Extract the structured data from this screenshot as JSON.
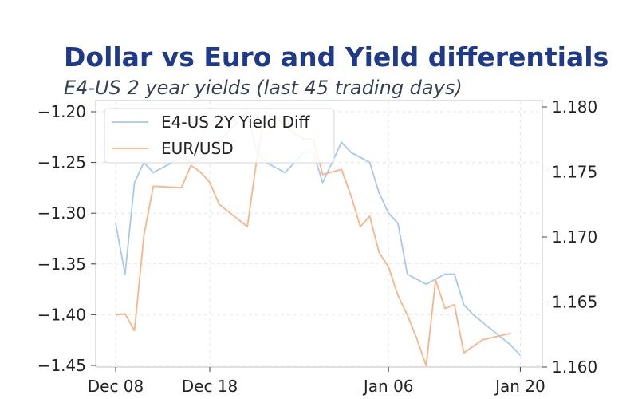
{
  "chart_data": {
    "type": "line",
    "title": "Dollar vs Euro and Yield differentials",
    "subtitle": "E4-US 2 year yields (last 45 trading days)",
    "xlabel": "",
    "ylabel_left": "",
    "ylabel_right": "",
    "x_ticks": [
      {
        "label": "Dec 08",
        "day": 0
      },
      {
        "label": "Dec 18",
        "day": 10
      },
      {
        "label": "Jan 06",
        "day": 29
      },
      {
        "label": "Jan 20",
        "day": 43
      }
    ],
    "y_left": {
      "range": [
        -1.45,
        -1.2
      ],
      "ticks": [
        -1.45,
        -1.4,
        -1.35,
        -1.3,
        -1.25,
        -1.2
      ],
      "tick_labels": [
        "−1.45",
        "−1.40",
        "−1.35",
        "−1.30",
        "−1.25",
        "−1.20"
      ]
    },
    "y_right": {
      "range": [
        1.16,
        1.18
      ],
      "ticks": [
        1.16,
        1.165,
        1.17,
        1.175,
        1.18
      ],
      "tick_labels": [
        "1.160",
        "1.165",
        "1.170",
        "1.175",
        "1.180"
      ]
    },
    "grid": true,
    "legend_position": "top-left",
    "series": [
      {
        "name": "E4-US 2Y Yield Diff",
        "axis": "left",
        "color": "#a8c8ec",
        "x": [
          0,
          1,
          2,
          3,
          4,
          6,
          7,
          8,
          9,
          14,
          15,
          16,
          17,
          18,
          19,
          20,
          21,
          22,
          23,
          24,
          25,
          26,
          27,
          28,
          29,
          30,
          31,
          32,
          33,
          35,
          36,
          37,
          38,
          42,
          43
        ],
        "y": [
          -1.31,
          -1.36,
          -1.27,
          -1.25,
          -1.26,
          -1.25,
          -1.245,
          -1.25,
          -1.248,
          -1.2,
          -1.24,
          -1.25,
          -1.255,
          -1.26,
          -1.25,
          -1.24,
          -1.24,
          -1.27,
          -1.25,
          -1.23,
          -1.24,
          -1.245,
          -1.25,
          -1.28,
          -1.3,
          -1.31,
          -1.36,
          -1.365,
          -1.37,
          -1.36,
          -1.36,
          -1.39,
          -1.4,
          -1.43,
          -1.44
        ]
      },
      {
        "name": "EUR/USD",
        "axis": "right",
        "color": "#f9b488",
        "x": [
          0,
          1,
          2,
          3,
          4,
          7,
          8,
          9,
          10,
          11,
          14,
          15,
          16,
          19,
          20,
          21,
          22,
          23,
          24,
          25,
          26,
          27,
          28,
          29,
          30,
          31,
          32,
          33,
          34,
          35,
          36,
          37,
          38,
          39,
          42
        ],
        "y": [
          1.164,
          1.1641,
          1.1628,
          1.1701,
          1.1739,
          1.1738,
          1.1755,
          1.175,
          1.1742,
          1.1725,
          1.1708,
          1.176,
          1.1797,
          1.178,
          1.1775,
          1.1775,
          1.1748,
          1.175,
          1.1752,
          1.1732,
          1.1708,
          1.1716,
          1.1688,
          1.1677,
          1.1655,
          1.164,
          1.1622,
          1.1601,
          1.1667,
          1.1645,
          1.1648,
          1.1611,
          1.1616,
          1.1621,
          1.1626
        ]
      }
    ]
  }
}
